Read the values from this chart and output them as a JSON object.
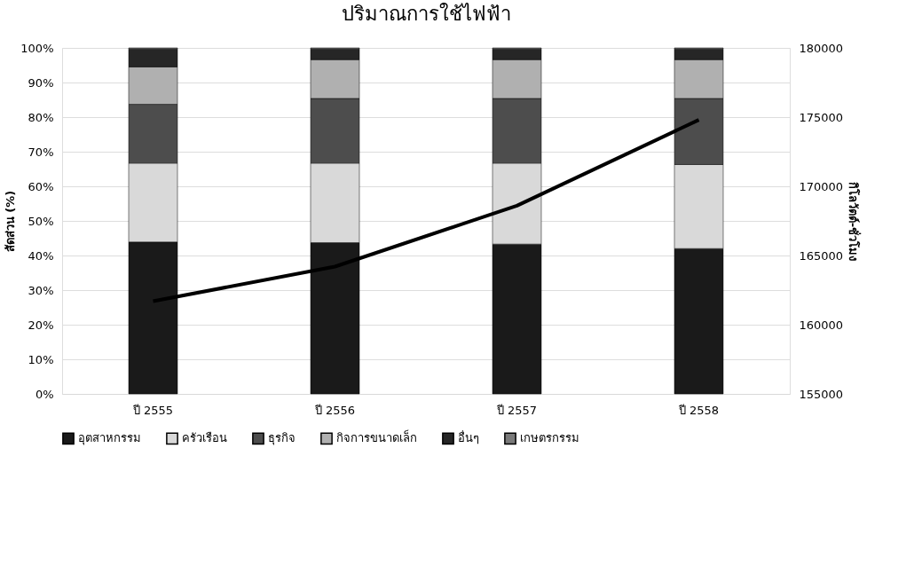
{
  "chart_data": {
    "type": "bar",
    "stacked": true,
    "title": "ปริมาณการใช้ไฟฟ้า",
    "ylabel": "สัดส่วน (%)",
    "y2label": "กิโลวัตต์-ชั่วโมง",
    "categories": [
      "ปี 2555",
      "ปี 2556",
      "ปี 2557",
      "ปี 2558"
    ],
    "series": [
      {
        "name": "อุตสาหกรรม",
        "color": "#1a1a1a",
        "values": [
          43.9,
          43.7,
          43.3,
          42.0
        ]
      },
      {
        "name": "ครัวเรือน",
        "color": "#d9d9d9",
        "values": [
          22.8,
          23.0,
          23.4,
          24.3
        ]
      },
      {
        "name": "ธุรกิจ",
        "color": "#4d4d4d",
        "values": [
          17.0,
          18.7,
          18.7,
          19.1
        ]
      },
      {
        "name": "กิจการขนาดเล็ก",
        "color": "#b0b0b0",
        "values": [
          10.8,
          11.2,
          11.2,
          11.2
        ]
      },
      {
        "name": "อื่นๆ",
        "color": "#262626",
        "values": [
          5.2,
          3.1,
          3.1,
          3.1
        ]
      },
      {
        "name": "เกษตรกรรม",
        "color": "#7a7a7a",
        "values": [
          0.3,
          0.3,
          0.3,
          0.3
        ]
      },
      {
        "type": "line",
        "axis": "y2",
        "color": "#000000",
        "values": [
          161700,
          164200,
          168600,
          174800
        ]
      }
    ],
    "ylim": [
      0,
      100
    ],
    "yticks": [
      {
        "value": 0,
        "label": "0%"
      },
      {
        "value": 10,
        "label": "10%"
      },
      {
        "value": 20,
        "label": "20%"
      },
      {
        "value": 30,
        "label": "30%"
      },
      {
        "value": 40,
        "label": "40%"
      },
      {
        "value": 50,
        "label": "50%"
      },
      {
        "value": 60,
        "label": "60%"
      },
      {
        "value": 70,
        "label": "70%"
      },
      {
        "value": 80,
        "label": "80%"
      },
      {
        "value": 90,
        "label": "90%"
      },
      {
        "value": 100,
        "label": "100%"
      }
    ],
    "y2lim": [
      155000,
      180000
    ],
    "y2ticks": [
      155000,
      160000,
      165000,
      170000,
      175000,
      180000
    ],
    "grid": "y",
    "legend": "bottom",
    "marker": "none",
    "line_style": "solid"
  }
}
